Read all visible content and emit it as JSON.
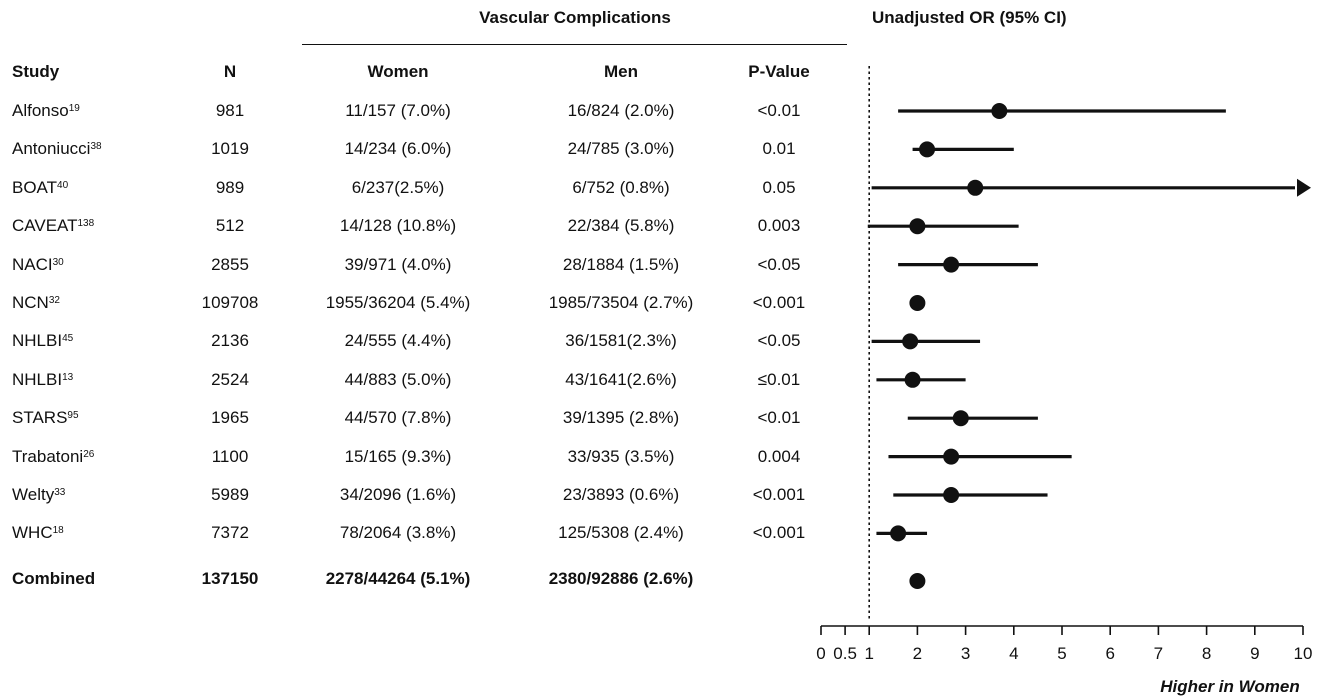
{
  "headers": {
    "group": "Vascular Complications",
    "or_title": "Unadjusted OR (95% CI)",
    "study": "Study",
    "n": "N",
    "women": "Women",
    "men": "Men",
    "pvalue": "P-Value"
  },
  "rows": [
    {
      "study": "Alfonso",
      "ref": "19",
      "n": "981",
      "women": "11/157 (7.0%)",
      "men": "16/824 (2.0%)",
      "p": "<0.01"
    },
    {
      "study": "Antoniucci",
      "ref": "38",
      "n": "1019",
      "women": "14/234 (6.0%)",
      "men": "24/785 (3.0%)",
      "p": "0.01"
    },
    {
      "study": "BOAT",
      "ref": "40",
      "n": "989",
      "women": "6/237(2.5%)",
      "men": "6/752 (0.8%)",
      "p": "0.05"
    },
    {
      "study": "CAVEAT",
      "ref": "138",
      "n": "512",
      "women": "14/128 (10.8%)",
      "men": "22/384 (5.8%)",
      "p": "0.003"
    },
    {
      "study": "NACI",
      "ref": "30",
      "n": "2855",
      "women": "39/971 (4.0%)",
      "men": "28/1884 (1.5%)",
      "p": "<0.05"
    },
    {
      "study": "NCN",
      "ref": "32",
      "n": "109708",
      "women": "1955/36204 (5.4%)",
      "men": "1985/73504 (2.7%)",
      "p": "<0.001"
    },
    {
      "study": "NHLBI",
      "ref": "45",
      "n": "2136",
      "women": "24/555 (4.4%)",
      "men": "36/1581(2.3%)",
      "p": "<0.05"
    },
    {
      "study": "NHLBI",
      "ref": "13",
      "n": "2524",
      "women": "44/883 (5.0%)",
      "men": "43/1641(2.6%)",
      "p": "≤0.01"
    },
    {
      "study": "STARS",
      "ref": "95",
      "n": "1965",
      "women": "44/570 (7.8%)",
      "men": "39/1395 (2.8%)",
      "p": "<0.01"
    },
    {
      "study": "Trabatoni",
      "ref": "26",
      "n": "1100",
      "women": "15/165 (9.3%)",
      "men": "33/935 (3.5%)",
      "p": "0.004"
    },
    {
      "study": "Welty",
      "ref": "33",
      "n": "5989",
      "women": "34/2096 (1.6%)",
      "men": "23/3893 (0.6%)",
      "p": "<0.001"
    },
    {
      "study": "WHC",
      "ref": "18",
      "n": "7372",
      "women": "78/2064 (3.8%)",
      "men": "125/5308 (2.4%)",
      "p": "<0.001"
    }
  ],
  "combined": {
    "study": "Combined",
    "n": "137150",
    "women": "2278/44264 (5.1%)",
    "men": "2380/92886 (2.6%)"
  },
  "chart_data": {
    "type": "forest",
    "x_label": "Higher in Women",
    "xlim": [
      0,
      10
    ],
    "x_ticks": [
      "0",
      "0.5",
      "1",
      "2",
      "3",
      "4",
      "5",
      "6",
      "7",
      "8",
      "9",
      "10"
    ],
    "reference_line": 1,
    "points": [
      {
        "study": "Alfonso",
        "or": 3.7,
        "lower": 1.6,
        "upper": 8.4
      },
      {
        "study": "Antoniucci",
        "or": 2.2,
        "lower": 1.9,
        "upper": 4.0
      },
      {
        "study": "BOAT",
        "or": 3.2,
        "lower": 1.05,
        "upper": 10,
        "arrow": true
      },
      {
        "study": "CAVEAT",
        "or": 2.0,
        "lower": 0.97,
        "upper": 4.1
      },
      {
        "study": "NACI",
        "or": 2.7,
        "lower": 1.6,
        "upper": 4.5
      },
      {
        "study": "NCN",
        "or": 2.0,
        "lower": 1.9,
        "upper": 2.1
      },
      {
        "study": "NHLBI (45)",
        "or": 1.85,
        "lower": 1.05,
        "upper": 3.3
      },
      {
        "study": "NHLBI (13)",
        "or": 1.9,
        "lower": 1.15,
        "upper": 3.0
      },
      {
        "study": "STARS",
        "or": 2.9,
        "lower": 1.8,
        "upper": 4.5
      },
      {
        "study": "Trabatoni",
        "or": 2.7,
        "lower": 1.4,
        "upper": 5.2
      },
      {
        "study": "Welty",
        "or": 2.7,
        "lower": 1.5,
        "upper": 4.7
      },
      {
        "study": "WHC",
        "or": 1.6,
        "lower": 1.15,
        "upper": 2.2
      },
      {
        "study": "Combined",
        "or": 2.0,
        "lower": 1.9,
        "upper": 2.1
      }
    ]
  }
}
